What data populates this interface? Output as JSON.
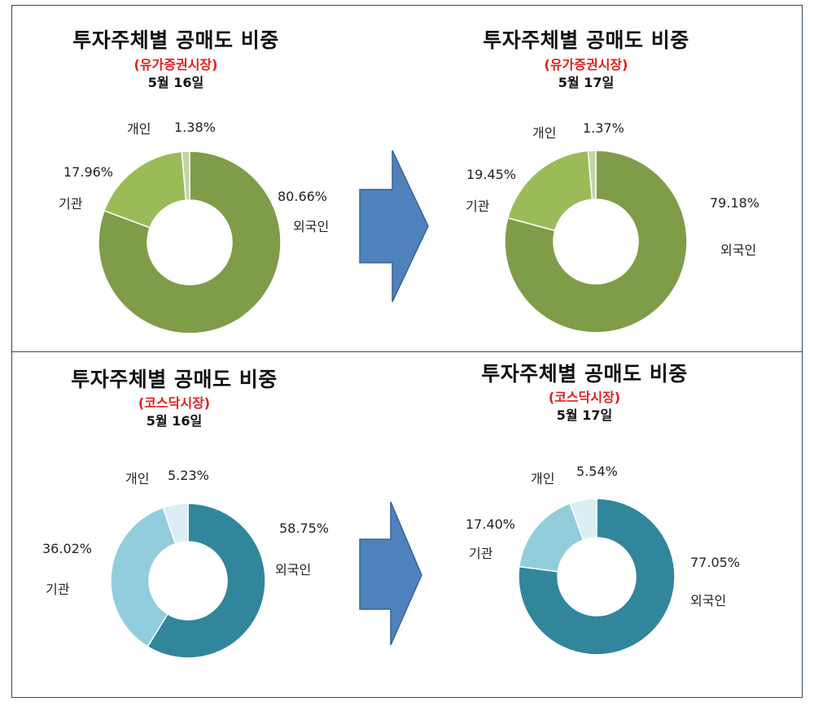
{
  "chart_data": [
    {
      "type": "pie",
      "title": "투자주체별 공매도 비중",
      "subtitle": "(유가증권시장)",
      "date": "5월 16일",
      "slices": [
        {
          "name": "외국인",
          "value": 80.66,
          "label": "80.66%",
          "color": "#7f9c48"
        },
        {
          "name": "기관",
          "value": 17.96,
          "label": "17.96%",
          "color": "#9bbb59"
        },
        {
          "name": "개인",
          "value": 1.38,
          "label": "1.38%",
          "color": "#c3d3a5"
        }
      ]
    },
    {
      "type": "pie",
      "title": "투자주체별 공매도 비중",
      "subtitle": "(유가증권시장)",
      "date": "5월 17일",
      "slices": [
        {
          "name": "외국인",
          "value": 79.18,
          "label": "79.18%",
          "color": "#7f9c48"
        },
        {
          "name": "기관",
          "value": 19.45,
          "label": "19.45%",
          "color": "#9bbb59"
        },
        {
          "name": "개인",
          "value": 1.37,
          "label": "1.37%",
          "color": "#c3d3a5"
        }
      ]
    },
    {
      "type": "pie",
      "title": "투자주체별 공매도 비중",
      "subtitle": "(코스닥시장)",
      "date": "5월 16일",
      "slices": [
        {
          "name": "외국인",
          "value": 58.75,
          "label": "58.75%",
          "color": "#31869b"
        },
        {
          "name": "기관",
          "value": 36.02,
          "label": "36.02%",
          "color": "#92cddc"
        },
        {
          "name": "개인",
          "value": 5.23,
          "label": "5.23%",
          "color": "#daeef3"
        }
      ]
    },
    {
      "type": "pie",
      "title": "투자주체별 공매도 비중",
      "subtitle": "(코스닥시장)",
      "date": "5월 17일",
      "slices": [
        {
          "name": "외국인",
          "value": 77.05,
          "label": "77.05%",
          "color": "#31869b"
        },
        {
          "name": "기관",
          "value": 17.4,
          "label": "17.40%",
          "color": "#92cddc"
        },
        {
          "name": "개인",
          "value": 5.54,
          "label": "5.54%",
          "color": "#daeef3"
        }
      ]
    }
  ],
  "colors": {
    "border": "#2f4860",
    "arrow": "#4f81bd",
    "market_text": "#e0201e"
  }
}
